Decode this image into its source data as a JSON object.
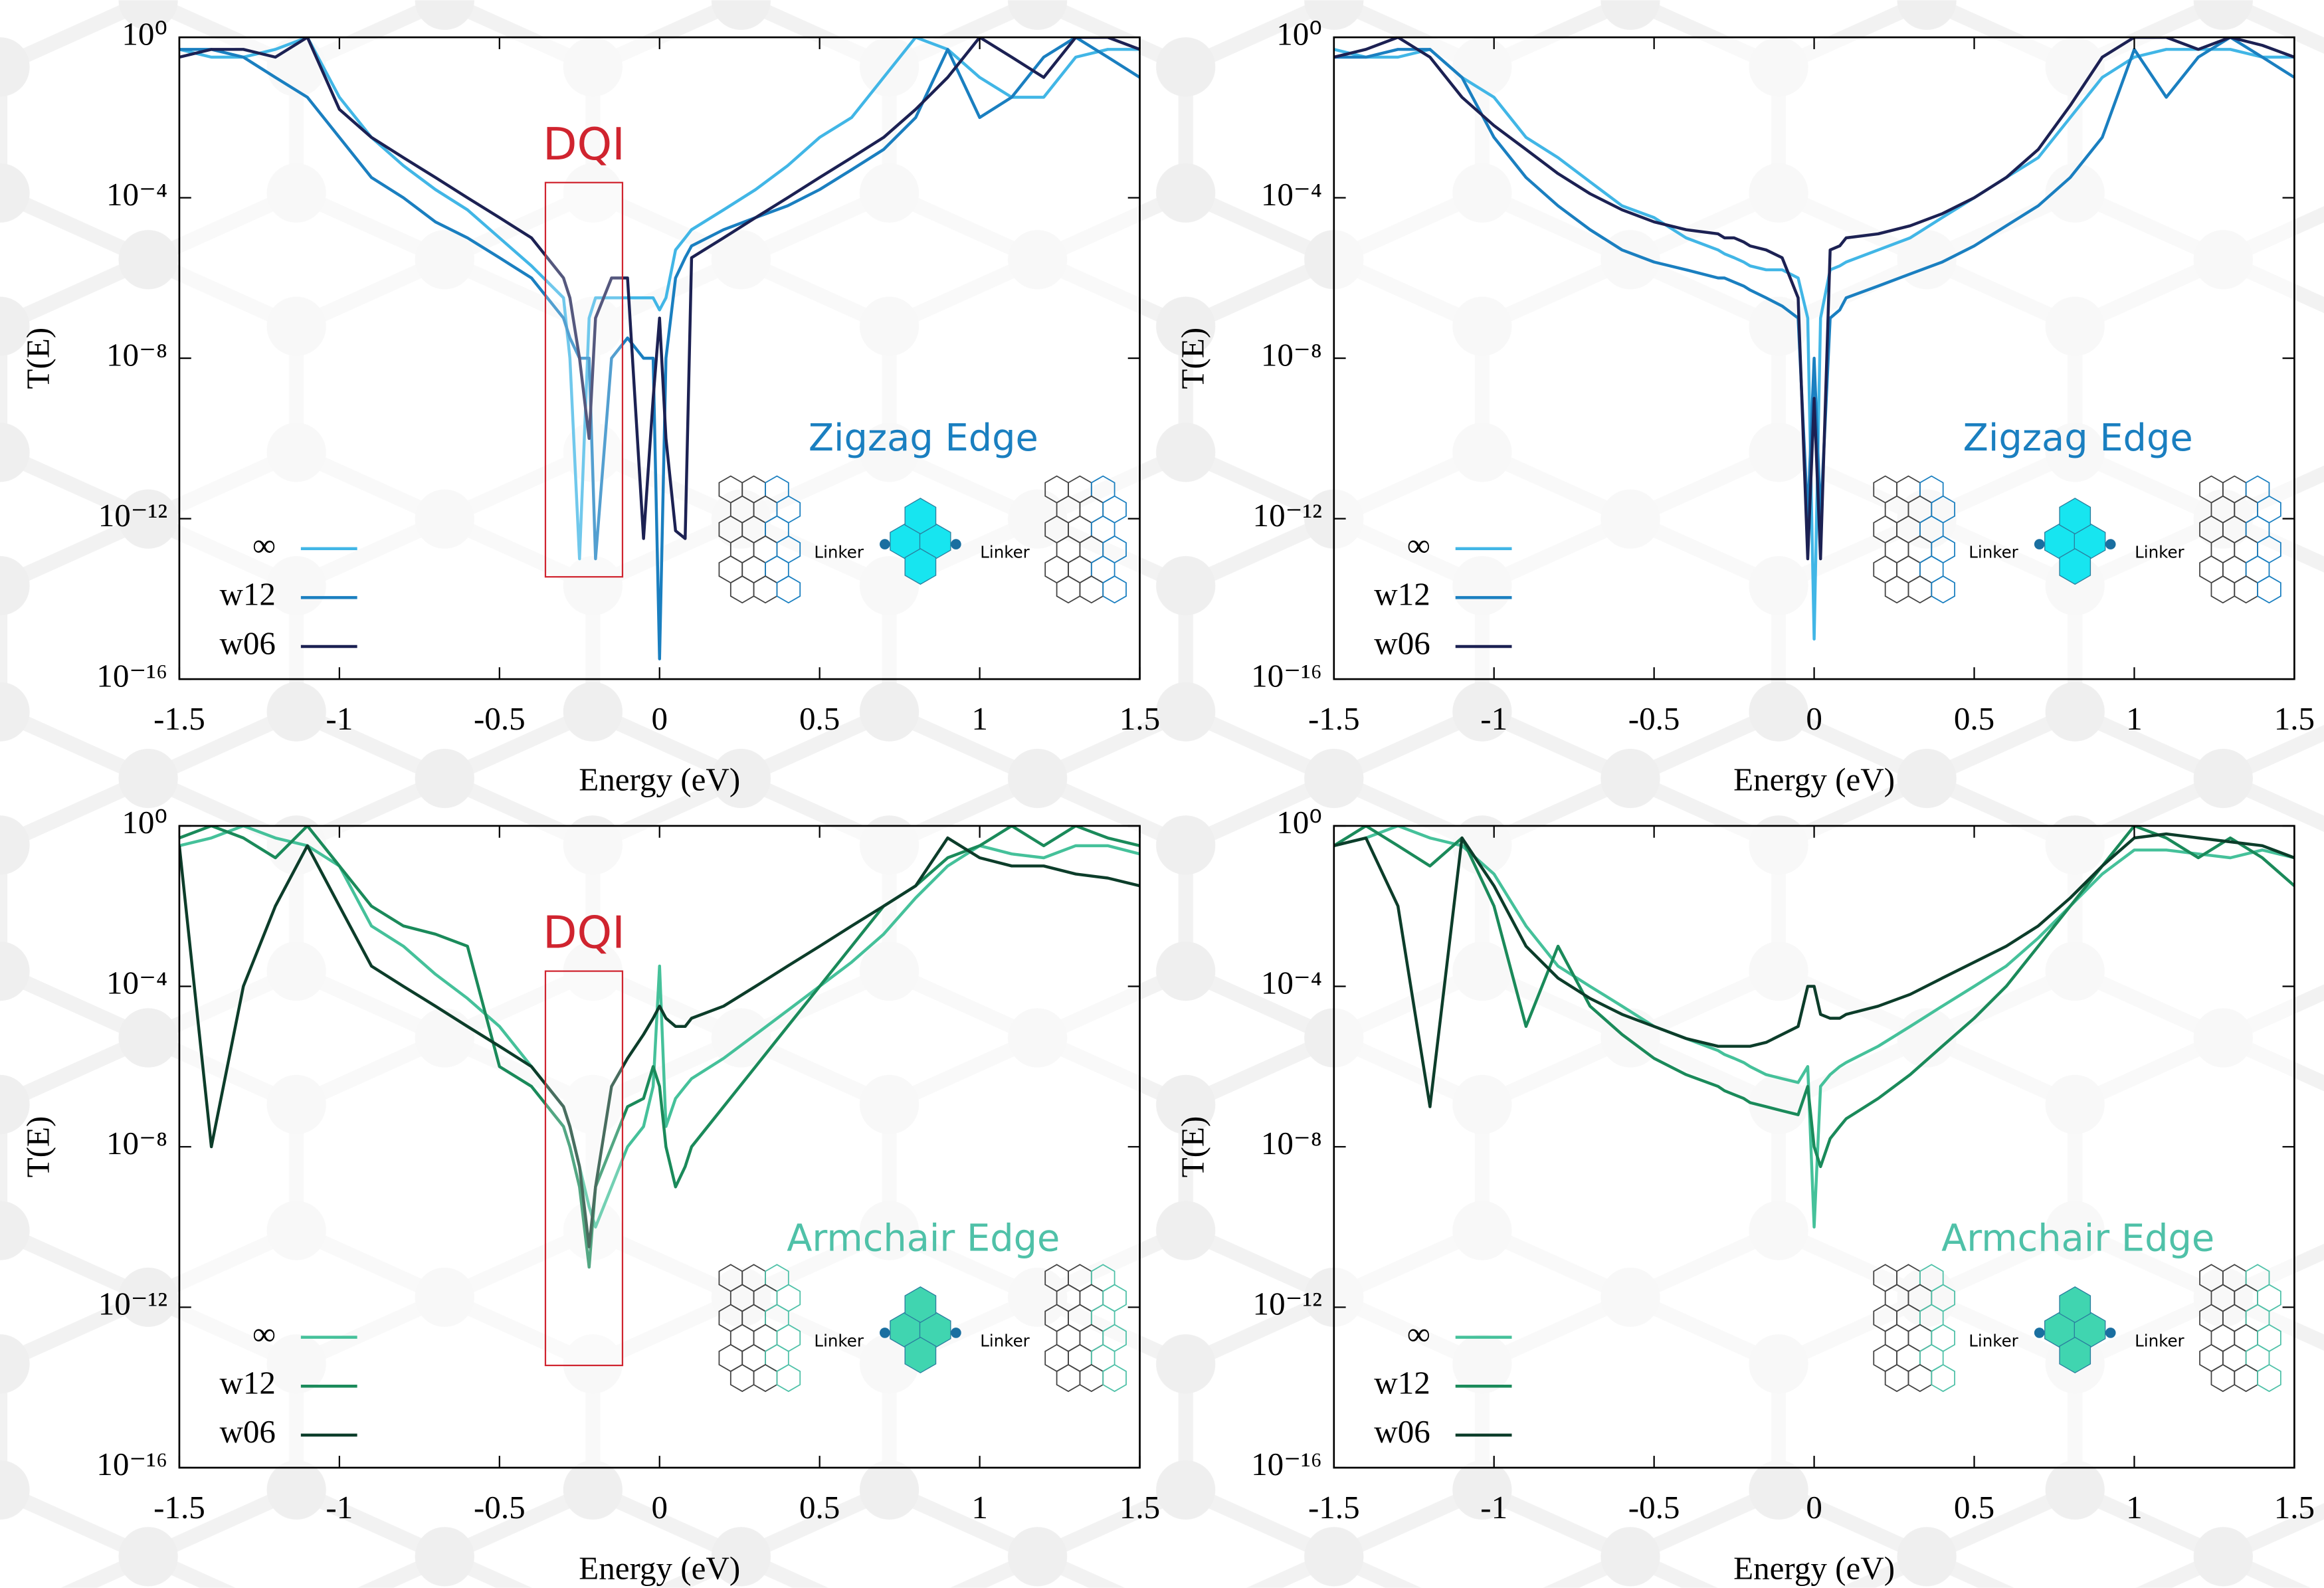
{
  "chart_data": [
    {
      "type": "line",
      "label": "Zigzag Edge",
      "label_color": "#1a7fc0",
      "inset_color": "#17e5f0",
      "annotations": [
        "DQI"
      ],
      "annotation_color": "#d0242f",
      "inset_labels": [
        "Linker",
        "Linker"
      ],
      "xlabel": "Energy (eV)",
      "ylabel": "T(E)",
      "log_y": true,
      "xlim": [
        -1.5,
        1.5
      ],
      "xticks": [
        -1.5,
        -1,
        -0.5,
        0,
        0.5,
        1,
        1.5
      ],
      "ylim": [
        1e-16,
        1
      ],
      "yticks": [
        {
          "value": 1e-16,
          "label": "10⁻¹⁶"
        },
        {
          "value": 1e-12,
          "label": "10⁻¹²"
        },
        {
          "value": 1e-08,
          "label": "10⁻⁸"
        },
        {
          "value": 0.0001,
          "label": "10⁻⁴"
        },
        {
          "value": 1,
          "label": "10⁰"
        }
      ],
      "x": [
        -1.5,
        -1.4,
        -1.3,
        -1.2,
        -1.1,
        -1.0,
        -0.9,
        -0.8,
        -0.7,
        -0.6,
        -0.5,
        -0.4,
        -0.3,
        -0.28,
        -0.25,
        -0.22,
        -0.2,
        -0.15,
        -0.1,
        -0.05,
        -0.02,
        0,
        0.02,
        0.05,
        0.08,
        0.1,
        0.2,
        0.3,
        0.4,
        0.5,
        0.6,
        0.7,
        0.8,
        0.9,
        1.0,
        1.1,
        1.2,
        1.3,
        1.4,
        1.5
      ],
      "series": [
        {
          "name": "∞",
          "color": "#41b6e6",
          "values": [
            0.5,
            0.32,
            0.32,
            0.5,
            1,
            0.032,
            0.0032,
            0.00063,
            0.00016,
            5e-05,
            1e-05,
            2e-06,
            3.2e-07,
            1e-08,
            1e-13,
            1e-07,
            3.2e-07,
            3.2e-07,
            3.2e-07,
            3.2e-07,
            3.2e-07,
            1.6e-07,
            3.2e-07,
            5e-06,
            1e-05,
            1.6e-05,
            5e-05,
            0.00016,
            0.00063,
            0.0032,
            0.01,
            0.1,
            1,
            0.5,
            0.1,
            0.032,
            0.032,
            0.32,
            0.5,
            0.5
          ]
        },
        {
          "name": "w12",
          "color": "#1a7fc0",
          "values": [
            0.5,
            0.5,
            0.32,
            0.1,
            0.032,
            0.0032,
            0.00032,
            0.0001,
            2.5e-05,
            1e-05,
            3.2e-06,
            1e-06,
            1e-07,
            3.2e-08,
            1e-08,
            1e-08,
            1e-13,
            1e-08,
            3.2e-08,
            1e-08,
            1e-08,
            3.2e-16,
            1e-08,
            1e-06,
            3.2e-06,
            6.3e-06,
            1.6e-05,
            3.2e-05,
            6.3e-05,
            0.00016,
            0.0005,
            0.0016,
            0.01,
            0.5,
            0.01,
            0.032,
            0.32,
            1,
            0.32,
            0.1
          ]
        },
        {
          "name": "w06",
          "color": "#1c2153",
          "values": [
            0.32,
            0.5,
            0.5,
            0.32,
            1,
            0.016,
            0.0032,
            0.001,
            0.00032,
            0.0001,
            3.2e-05,
            1e-05,
            1e-06,
            3.2e-07,
            1e-08,
            1e-10,
            1e-07,
            1e-06,
            1e-06,
            3.2e-13,
            1e-09,
            1e-07,
            1e-10,
            5e-13,
            3.2e-13,
            3.2e-06,
            1e-05,
            3.2e-05,
            0.0001,
            0.00032,
            0.001,
            0.0032,
            0.016,
            0.1,
            1,
            0.32,
            0.1,
            1,
            1,
            0.5
          ]
        }
      ]
    },
    {
      "type": "line",
      "label": "Zigzag Edge",
      "label_color": "#1a7fc0",
      "inset_color": "#17e5f0",
      "inset_labels": [
        "Linker",
        "Linker"
      ],
      "xlabel": "Energy (eV)",
      "ylabel": "T(E)",
      "log_y": true,
      "xlim": [
        -1.5,
        1.5
      ],
      "xticks": [
        -1.5,
        -1,
        -0.5,
        0,
        0.5,
        1,
        1.5
      ],
      "ylim": [
        1e-16,
        1
      ],
      "yticks": [
        {
          "value": 1e-16,
          "label": "10⁻¹⁶"
        },
        {
          "value": 1e-12,
          "label": "10⁻¹²"
        },
        {
          "value": 1e-08,
          "label": "10⁻⁸"
        },
        {
          "value": 0.0001,
          "label": "10⁻⁴"
        },
        {
          "value": 1,
          "label": "10⁰"
        }
      ],
      "x": [
        -1.5,
        -1.4,
        -1.3,
        -1.2,
        -1.1,
        -1.0,
        -0.9,
        -0.8,
        -0.7,
        -0.6,
        -0.5,
        -0.4,
        -0.3,
        -0.28,
        -0.25,
        -0.22,
        -0.2,
        -0.15,
        -0.1,
        -0.05,
        -0.02,
        0,
        0.02,
        0.05,
        0.08,
        0.1,
        0.2,
        0.3,
        0.4,
        0.5,
        0.6,
        0.7,
        0.8,
        0.9,
        1.0,
        1.1,
        1.2,
        1.3,
        1.4,
        1.5
      ],
      "series": [
        {
          "name": "∞",
          "color": "#41b6e6",
          "values": [
            0.5,
            0.32,
            0.32,
            0.5,
            0.1,
            0.032,
            0.0032,
            0.001,
            0.00025,
            6.3e-05,
            3.2e-05,
            1e-05,
            5e-06,
            4e-06,
            3.2e-06,
            2.5e-06,
            2e-06,
            1.6e-06,
            1.6e-06,
            1e-06,
            1e-07,
            1e-15,
            1e-07,
            1.6e-06,
            2e-06,
            2.5e-06,
            5e-06,
            1e-05,
            3.2e-05,
            0.0001,
            0.00032,
            0.001,
            0.01,
            0.1,
            0.32,
            0.5,
            0.5,
            0.5,
            0.32,
            0.32
          ]
        },
        {
          "name": "w12",
          "color": "#1a7fc0",
          "values": [
            0.32,
            0.32,
            0.5,
            0.5,
            0.1,
            0.0032,
            0.00032,
            6.3e-05,
            1.6e-05,
            5e-06,
            2.5e-06,
            1.6e-06,
            1e-06,
            1e-06,
            7.9e-07,
            6.3e-07,
            5e-07,
            3.2e-07,
            2e-07,
            1e-07,
            1e-12,
            1e-08,
            1e-12,
            1e-07,
            1.6e-07,
            3.2e-07,
            6.3e-07,
            1.26e-06,
            2.5e-06,
            6.3e-06,
            2e-05,
            6.3e-05,
            0.00032,
            0.0032,
            0.5,
            0.032,
            0.32,
            1,
            0.32,
            0.1
          ]
        },
        {
          "name": "w06",
          "color": "#1c2153",
          "values": [
            0.32,
            0.5,
            1,
            0.32,
            0.032,
            0.0063,
            0.0016,
            0.0004,
            0.000126,
            5e-05,
            2.5e-05,
            1.6e-05,
            1.26e-05,
            1e-05,
            1e-05,
            7.9e-06,
            6.3e-06,
            5e-06,
            3.2e-06,
            3.2e-07,
            1e-13,
            1e-09,
            1e-13,
            5e-06,
            6.3e-06,
            1e-05,
            1.26e-05,
            2e-05,
            4e-05,
            0.0001,
            0.00032,
            0.0016,
            0.02,
            0.32,
            1,
            1,
            0.5,
            1,
            0.63,
            0.32
          ]
        }
      ]
    },
    {
      "type": "line",
      "label": "Armchair Edge",
      "label_color": "#4fc1a8",
      "inset_color": "#40d5b0",
      "annotations": [
        "DQI"
      ],
      "annotation_color": "#d0242f",
      "inset_labels": [
        "Linker",
        "Linker"
      ],
      "xlabel": "Energy (eV)",
      "ylabel": "T(E)",
      "log_y": true,
      "xlim": [
        -1.5,
        1.5
      ],
      "xticks": [
        -1.5,
        -1,
        -0.5,
        0,
        0.5,
        1,
        1.5
      ],
      "ylim": [
        1e-16,
        1
      ],
      "yticks": [
        {
          "value": 1e-16,
          "label": "10⁻¹⁶"
        },
        {
          "value": 1e-12,
          "label": "10⁻¹²"
        },
        {
          "value": 1e-08,
          "label": "10⁻⁸"
        },
        {
          "value": 0.0001,
          "label": "10⁻⁴"
        },
        {
          "value": 1,
          "label": "10⁰"
        }
      ],
      "x": [
        -1.5,
        -1.4,
        -1.3,
        -1.2,
        -1.1,
        -1.0,
        -0.9,
        -0.8,
        -0.7,
        -0.6,
        -0.5,
        -0.4,
        -0.3,
        -0.28,
        -0.25,
        -0.22,
        -0.2,
        -0.15,
        -0.1,
        -0.05,
        -0.02,
        0,
        0.02,
        0.05,
        0.08,
        0.1,
        0.2,
        0.3,
        0.4,
        0.5,
        0.6,
        0.7,
        0.8,
        0.9,
        1.0,
        1.1,
        1.2,
        1.3,
        1.4,
        1.5
      ],
      "series": [
        {
          "name": "∞",
          "color": "#45c19a",
          "values": [
            0.32,
            0.5,
            1,
            0.5,
            0.32,
            0.1,
            0.0032,
            0.001,
            0.0002,
            5e-05,
            1e-05,
            1e-06,
            1e-07,
            3.2e-08,
            3.2e-09,
            3.2e-10,
            1e-10,
            1e-09,
            1e-08,
            3.2e-08,
            3.2e-07,
            0.00032,
            3.2e-08,
            1.6e-07,
            3.2e-07,
            5e-07,
            1.6e-06,
            6.3e-06,
            2.5e-05,
            0.0001,
            0.0004,
            0.002,
            0.016,
            0.1,
            0.32,
            0.2,
            0.16,
            0.32,
            0.32,
            0.2
          ]
        },
        {
          "name": "w12",
          "color": "#1a8a5a",
          "values": [
            0.5,
            1,
            0.5,
            0.16,
            1,
            0.1,
            0.01,
            0.0032,
            0.002,
            0.001,
            1e-06,
            3.2e-07,
            3.2e-08,
            1e-08,
            1e-09,
            1e-11,
            1e-09,
            1e-08,
            1e-07,
            1.6e-07,
            1e-06,
            3.2e-07,
            1e-08,
            1e-09,
            3.2e-09,
            1e-08,
            1e-07,
            1e-06,
            1e-05,
            0.0001,
            0.001,
            0.01,
            0.032,
            0.16,
            0.32,
            1,
            0.32,
            1,
            0.5,
            0.32
          ]
        },
        {
          "name": "w06",
          "color": "#0c3d2a",
          "values": [
            0.32,
            1e-08,
            0.0001,
            0.01,
            0.32,
            0.01,
            0.00032,
            0.0001,
            3.2e-05,
            1e-05,
            3.2e-06,
            1e-06,
            1e-07,
            3.2e-08,
            3.2e-09,
            3.2e-11,
            1e-09,
            3.2e-07,
            1.6e-06,
            6.3e-06,
            1.6e-05,
            3.2e-05,
            1.6e-05,
            1e-05,
            1e-05,
            1.6e-05,
            3.2e-05,
            0.0001,
            0.00032,
            0.001,
            0.0032,
            0.01,
            0.032,
            0.5,
            0.16,
            0.1,
            0.1,
            0.063,
            0.05,
            0.032
          ]
        }
      ]
    },
    {
      "type": "line",
      "label": "Armchair Edge",
      "label_color": "#4fc1a8",
      "inset_color": "#40d5b0",
      "inset_labels": [
        "Linker",
        "Linker"
      ],
      "xlabel": "Energy (eV)",
      "ylabel": "T(E)",
      "log_y": true,
      "xlim": [
        -1.5,
        1.5
      ],
      "xticks": [
        -1.5,
        -1,
        -0.5,
        0,
        0.5,
        1,
        1.5
      ],
      "ylim": [
        1e-16,
        1
      ],
      "yticks": [
        {
          "value": 1e-16,
          "label": "10⁻¹⁶"
        },
        {
          "value": 1e-12,
          "label": "10⁻¹²"
        },
        {
          "value": 1e-08,
          "label": "10⁻⁸"
        },
        {
          "value": 0.0001,
          "label": "10⁻⁴"
        },
        {
          "value": 1,
          "label": "10⁰"
        }
      ],
      "x": [
        -1.5,
        -1.4,
        -1.3,
        -1.2,
        -1.1,
        -1.0,
        -0.9,
        -0.8,
        -0.7,
        -0.6,
        -0.5,
        -0.4,
        -0.3,
        -0.28,
        -0.25,
        -0.22,
        -0.2,
        -0.15,
        -0.1,
        -0.05,
        -0.02,
        0,
        0.02,
        0.05,
        0.08,
        0.1,
        0.2,
        0.3,
        0.4,
        0.5,
        0.6,
        0.7,
        0.8,
        0.9,
        1.0,
        1.1,
        1.2,
        1.3,
        1.4,
        1.5
      ],
      "series": [
        {
          "name": "∞",
          "color": "#45c19a",
          "values": [
            0.32,
            0.5,
            1,
            0.5,
            0.32,
            0.063,
            0.0032,
            0.00032,
            0.0001,
            3.2e-05,
            1e-05,
            5e-06,
            2.5e-06,
            2e-06,
            1.6e-06,
            1.26e-06,
            1e-06,
            6.3e-07,
            5e-07,
            4e-07,
            1e-06,
            1e-10,
            3.2e-07,
            6.3e-07,
            1e-06,
            1.26e-06,
            3.2e-06,
            1e-05,
            3.2e-05,
            0.0001,
            0.00032,
            0.0016,
            0.01,
            0.063,
            0.25,
            0.25,
            0.2,
            0.16,
            0.25,
            0.16
          ]
        },
        {
          "name": "w12",
          "color": "#1a8a5a",
          "values": [
            0.32,
            1,
            0.32,
            0.1,
            0.5,
            0.01,
            1e-05,
            0.001,
            3.2e-05,
            6.3e-06,
            1.6e-06,
            6.3e-07,
            3.2e-07,
            2.5e-07,
            2e-07,
            1.6e-07,
            1.26e-07,
            1e-07,
            7.9e-08,
            6.3e-08,
            3.2e-07,
            1e-08,
            3.2e-09,
            1.6e-08,
            3.2e-08,
            5e-08,
            1.6e-07,
            6.3e-07,
            3.2e-06,
            1.6e-05,
            0.0001,
            0.001,
            0.01,
            0.1,
            1,
            0.5,
            0.16,
            0.5,
            0.16,
            0.032
          ]
        },
        {
          "name": "w06",
          "color": "#0c3d2a",
          "values": [
            0.32,
            0.5,
            0.01,
            1e-07,
            0.5,
            0.032,
            0.001,
            0.00016,
            5e-05,
            2e-05,
            1e-05,
            5e-06,
            3.2e-06,
            3.2e-06,
            3.2e-06,
            3.2e-06,
            3.2e-06,
            4e-06,
            6.3e-06,
            1e-05,
            0.0001,
            0.0001,
            2e-05,
            1.6e-05,
            1.6e-05,
            2e-05,
            3.2e-05,
            6.3e-05,
            0.00016,
            0.0004,
            0.001,
            0.0032,
            0.016,
            0.1,
            0.5,
            0.63,
            0.5,
            0.4,
            0.32,
            0.16
          ]
        }
      ]
    }
  ]
}
